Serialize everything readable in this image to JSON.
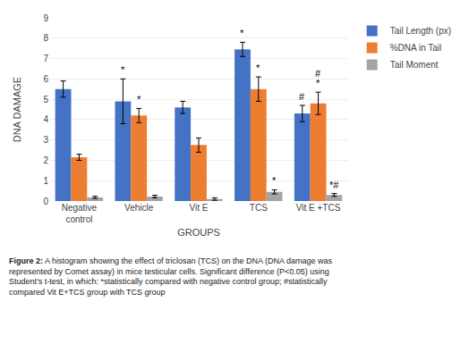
{
  "chart_data": {
    "type": "bar",
    "xlabel": "GROUPS",
    "ylabel": "DNA DAMAGE",
    "categories": [
      "Negative\ncontrol",
      "Vehicle",
      "Vit E",
      "TCS",
      "Vit E +TCS"
    ],
    "series": [
      {
        "name": "Tail Length (px)",
        "color": "#4472C4",
        "values": [
          5.5,
          4.9,
          4.6,
          7.45,
          4.3
        ],
        "errors": [
          0.4,
          1.1,
          0.3,
          0.35,
          0.4
        ]
      },
      {
        "name": "%DNA in Tail",
        "color": "#ED7D31",
        "values": [
          2.15,
          4.2,
          2.75,
          5.5,
          4.8
        ],
        "errors": [
          0.15,
          0.35,
          0.35,
          0.6,
          0.55
        ]
      },
      {
        "name": "Tail Moment",
        "color": "#A5A5A5",
        "values": [
          0.18,
          0.22,
          0.1,
          0.45,
          0.3
        ],
        "errors": [
          0.05,
          0.06,
          0.06,
          0.1,
          0.07
        ]
      }
    ],
    "ylim": [
      0,
      9
    ],
    "yticks": [
      0,
      1,
      2,
      3,
      4,
      5,
      6,
      7,
      8,
      9
    ],
    "grid": true,
    "legend": "right",
    "annotations": [
      {
        "category": "Vehicle",
        "series": "Tail Length (px)",
        "text": "*"
      },
      {
        "category": "Vehicle",
        "series": "%DNA in Tail",
        "text": "*"
      },
      {
        "category": "TCS",
        "series": "Tail Length (px)",
        "text": "*"
      },
      {
        "category": "TCS",
        "series": "%DNA in Tail",
        "text": "*"
      },
      {
        "category": "TCS",
        "series": "Tail Moment",
        "text": "*"
      },
      {
        "category": "Vit E +TCS",
        "series": "Tail Length (px)",
        "text": "#"
      },
      {
        "category": "Vit E +TCS",
        "series": "%DNA in Tail",
        "text": "*"
      },
      {
        "category": "Vit E +TCS",
        "series": "%DNA in Tail",
        "text": "#"
      },
      {
        "category": "Vit E +TCS",
        "series": "Tail Moment",
        "text": "*#"
      }
    ],
    "caption": {
      "label": "Figure 2:",
      "text": "A histogram showing the effect of triclosan (TCS) on the DNA (DNA damage was represented by Comet assay) in mice testicular cells. Significant difference (P<0.05) using Student’s t-test, in which: *statistically compared with negative control group; #statistically compared Vit E+TCS group with TCS group"
    }
  }
}
